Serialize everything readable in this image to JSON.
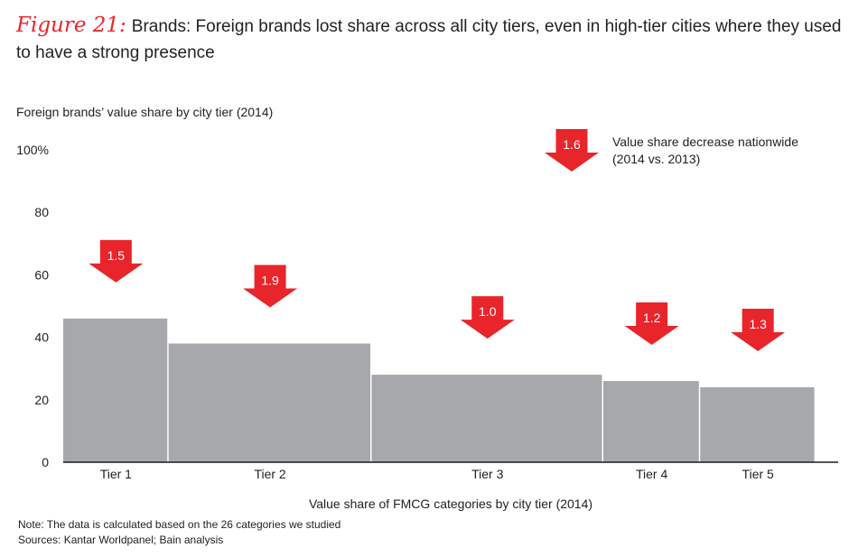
{
  "header": {
    "figure_label": "Figure 21:",
    "title": "Brands: Foreign brands lost share across all city tiers, even in high-tier cities where they used to have a strong presence"
  },
  "chart_data": {
    "type": "bar",
    "subtitle": "Foreign brands’ value share by city tier (2014)",
    "xlabel": "Value share of FMCG categories by city tier (2014)",
    "ylabel": "",
    "ylim": [
      0,
      100
    ],
    "yticks": [
      {
        "value": 0,
        "label": "0"
      },
      {
        "value": 20,
        "label": "20"
      },
      {
        "value": 40,
        "label": "40"
      },
      {
        "value": 60,
        "label": "60"
      },
      {
        "value": 80,
        "label": "80"
      },
      {
        "value": 100,
        "label": "100%"
      }
    ],
    "xlim": [
      0,
      100
    ],
    "categories": [
      "Tier 1",
      "Tier 2",
      "Tier 3",
      "Tier 4",
      "Tier 5"
    ],
    "widths": [
      13.6,
      26.2,
      29.9,
      12.5,
      14.9
    ],
    "values": [
      46,
      38,
      28,
      26,
      24
    ],
    "decreases": [
      "1.5",
      "1.9",
      "1.0",
      "1.2",
      "1.3"
    ],
    "nationwide": {
      "value": "1.6",
      "label_line1": "Value share decrease nationwide",
      "label_line2": "(2014 vs. 2013)"
    },
    "colors": {
      "bar": "#a7a8ab",
      "arrow": "#e8252a",
      "axis": "#1a1a1a"
    },
    "grid": false
  },
  "footer": {
    "note": "Note: The data is calculated based on the 26 categories we studied",
    "sources": "Sources: Kantar Worldpanel; Bain analysis"
  }
}
